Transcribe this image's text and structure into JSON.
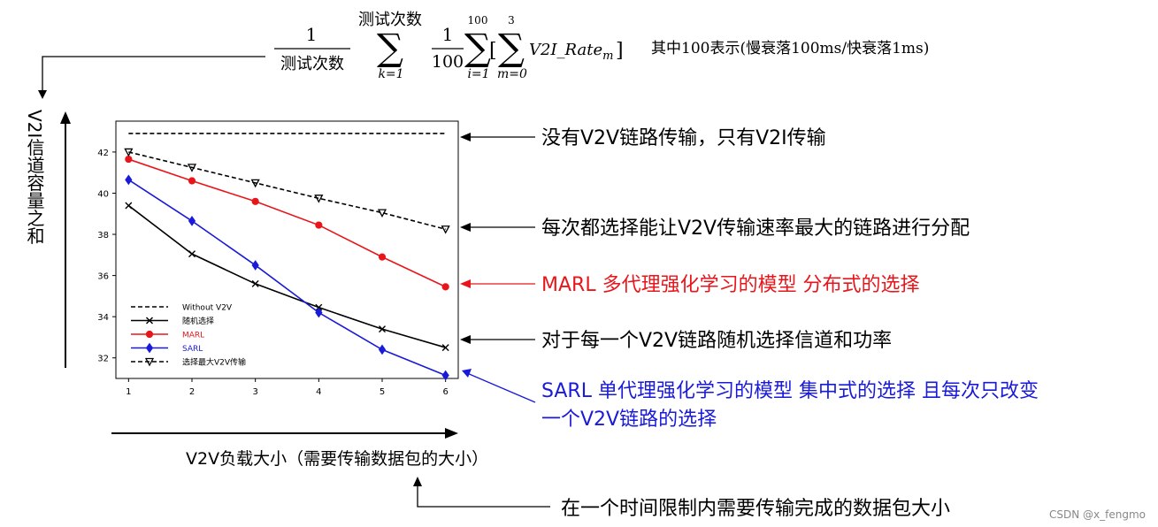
{
  "formula": {
    "frac1_num": "1",
    "frac1_den": "测试次数",
    "sum1_top": "测试次数",
    "sum1_bottom": "k=1",
    "frac2_num": "1",
    "frac2_den": "100",
    "sum2_top": "100",
    "sum2_bottom": "i=1",
    "bracket_open": "[",
    "sum3_top": "3",
    "sum3_bottom": "m=0",
    "term": "V2I_Rate",
    "term_sub": "m",
    "bracket_close": "]",
    "note": "其中100表示(慢衰落100ms/快衰落1ms)"
  },
  "y_axis_caption": "V2I信道容量之和",
  "x_axis_caption": "V2V负载大小（需要传输数据包的大小）",
  "annotations": {
    "without_v2v": "没有V2V链路传输，只有V2I传输",
    "max_v2v": "每次都选择能让V2V传输速率最大的链路进行分配",
    "marl": "MARL 多代理强化学习的模型 分布式的选择",
    "random": "对于每一个V2V链路随机选择信道和功率",
    "sarl_line1": "SARL 单代理强化学习的模型 集中式的选择 且每次只改变",
    "sarl_line2": "一个V2V链路的选择",
    "x_meaning": "在一个时间限制内需要传输完成的数据包大小"
  },
  "watermark": "CSDN @x_fengmo",
  "colors": {
    "red": "#e8161b",
    "blue": "#1a1ad9",
    "black": "#000000"
  },
  "chart_data": {
    "type": "line",
    "x": [
      1,
      2,
      3,
      4,
      5,
      6
    ],
    "xlim": [
      0.8,
      6.2
    ],
    "ylim": [
      31.0,
      43.5
    ],
    "x_ticks": [
      1,
      2,
      3,
      4,
      5,
      6
    ],
    "y_ticks": [
      32,
      34,
      36,
      38,
      40,
      42
    ],
    "grid": false,
    "legend_position": "lower-left",
    "series": [
      {
        "name": "Without V2V",
        "color": "#000000",
        "dash": "dashed",
        "marker": "none",
        "values": [
          42.9,
          42.9,
          42.9,
          42.9,
          42.9,
          42.9
        ]
      },
      {
        "name": "随机选择",
        "color": "#000000",
        "dash": "solid",
        "marker": "x",
        "values": [
          39.4,
          37.05,
          35.6,
          34.45,
          33.4,
          32.5
        ]
      },
      {
        "name": "MARL",
        "color": "#e8161b",
        "dash": "solid",
        "marker": "circle",
        "values": [
          41.65,
          40.6,
          39.6,
          38.45,
          36.9,
          35.45
        ]
      },
      {
        "name": "SARL",
        "color": "#1a1ad9",
        "dash": "solid",
        "marker": "diamond",
        "values": [
          40.65,
          38.65,
          36.5,
          34.2,
          32.4,
          31.15
        ]
      },
      {
        "name": "选择最大V2V传输",
        "color": "#000000",
        "dash": "dashed",
        "marker": "triangle-down",
        "values": [
          42.0,
          41.25,
          40.5,
          39.75,
          39.05,
          38.25
        ]
      }
    ]
  }
}
